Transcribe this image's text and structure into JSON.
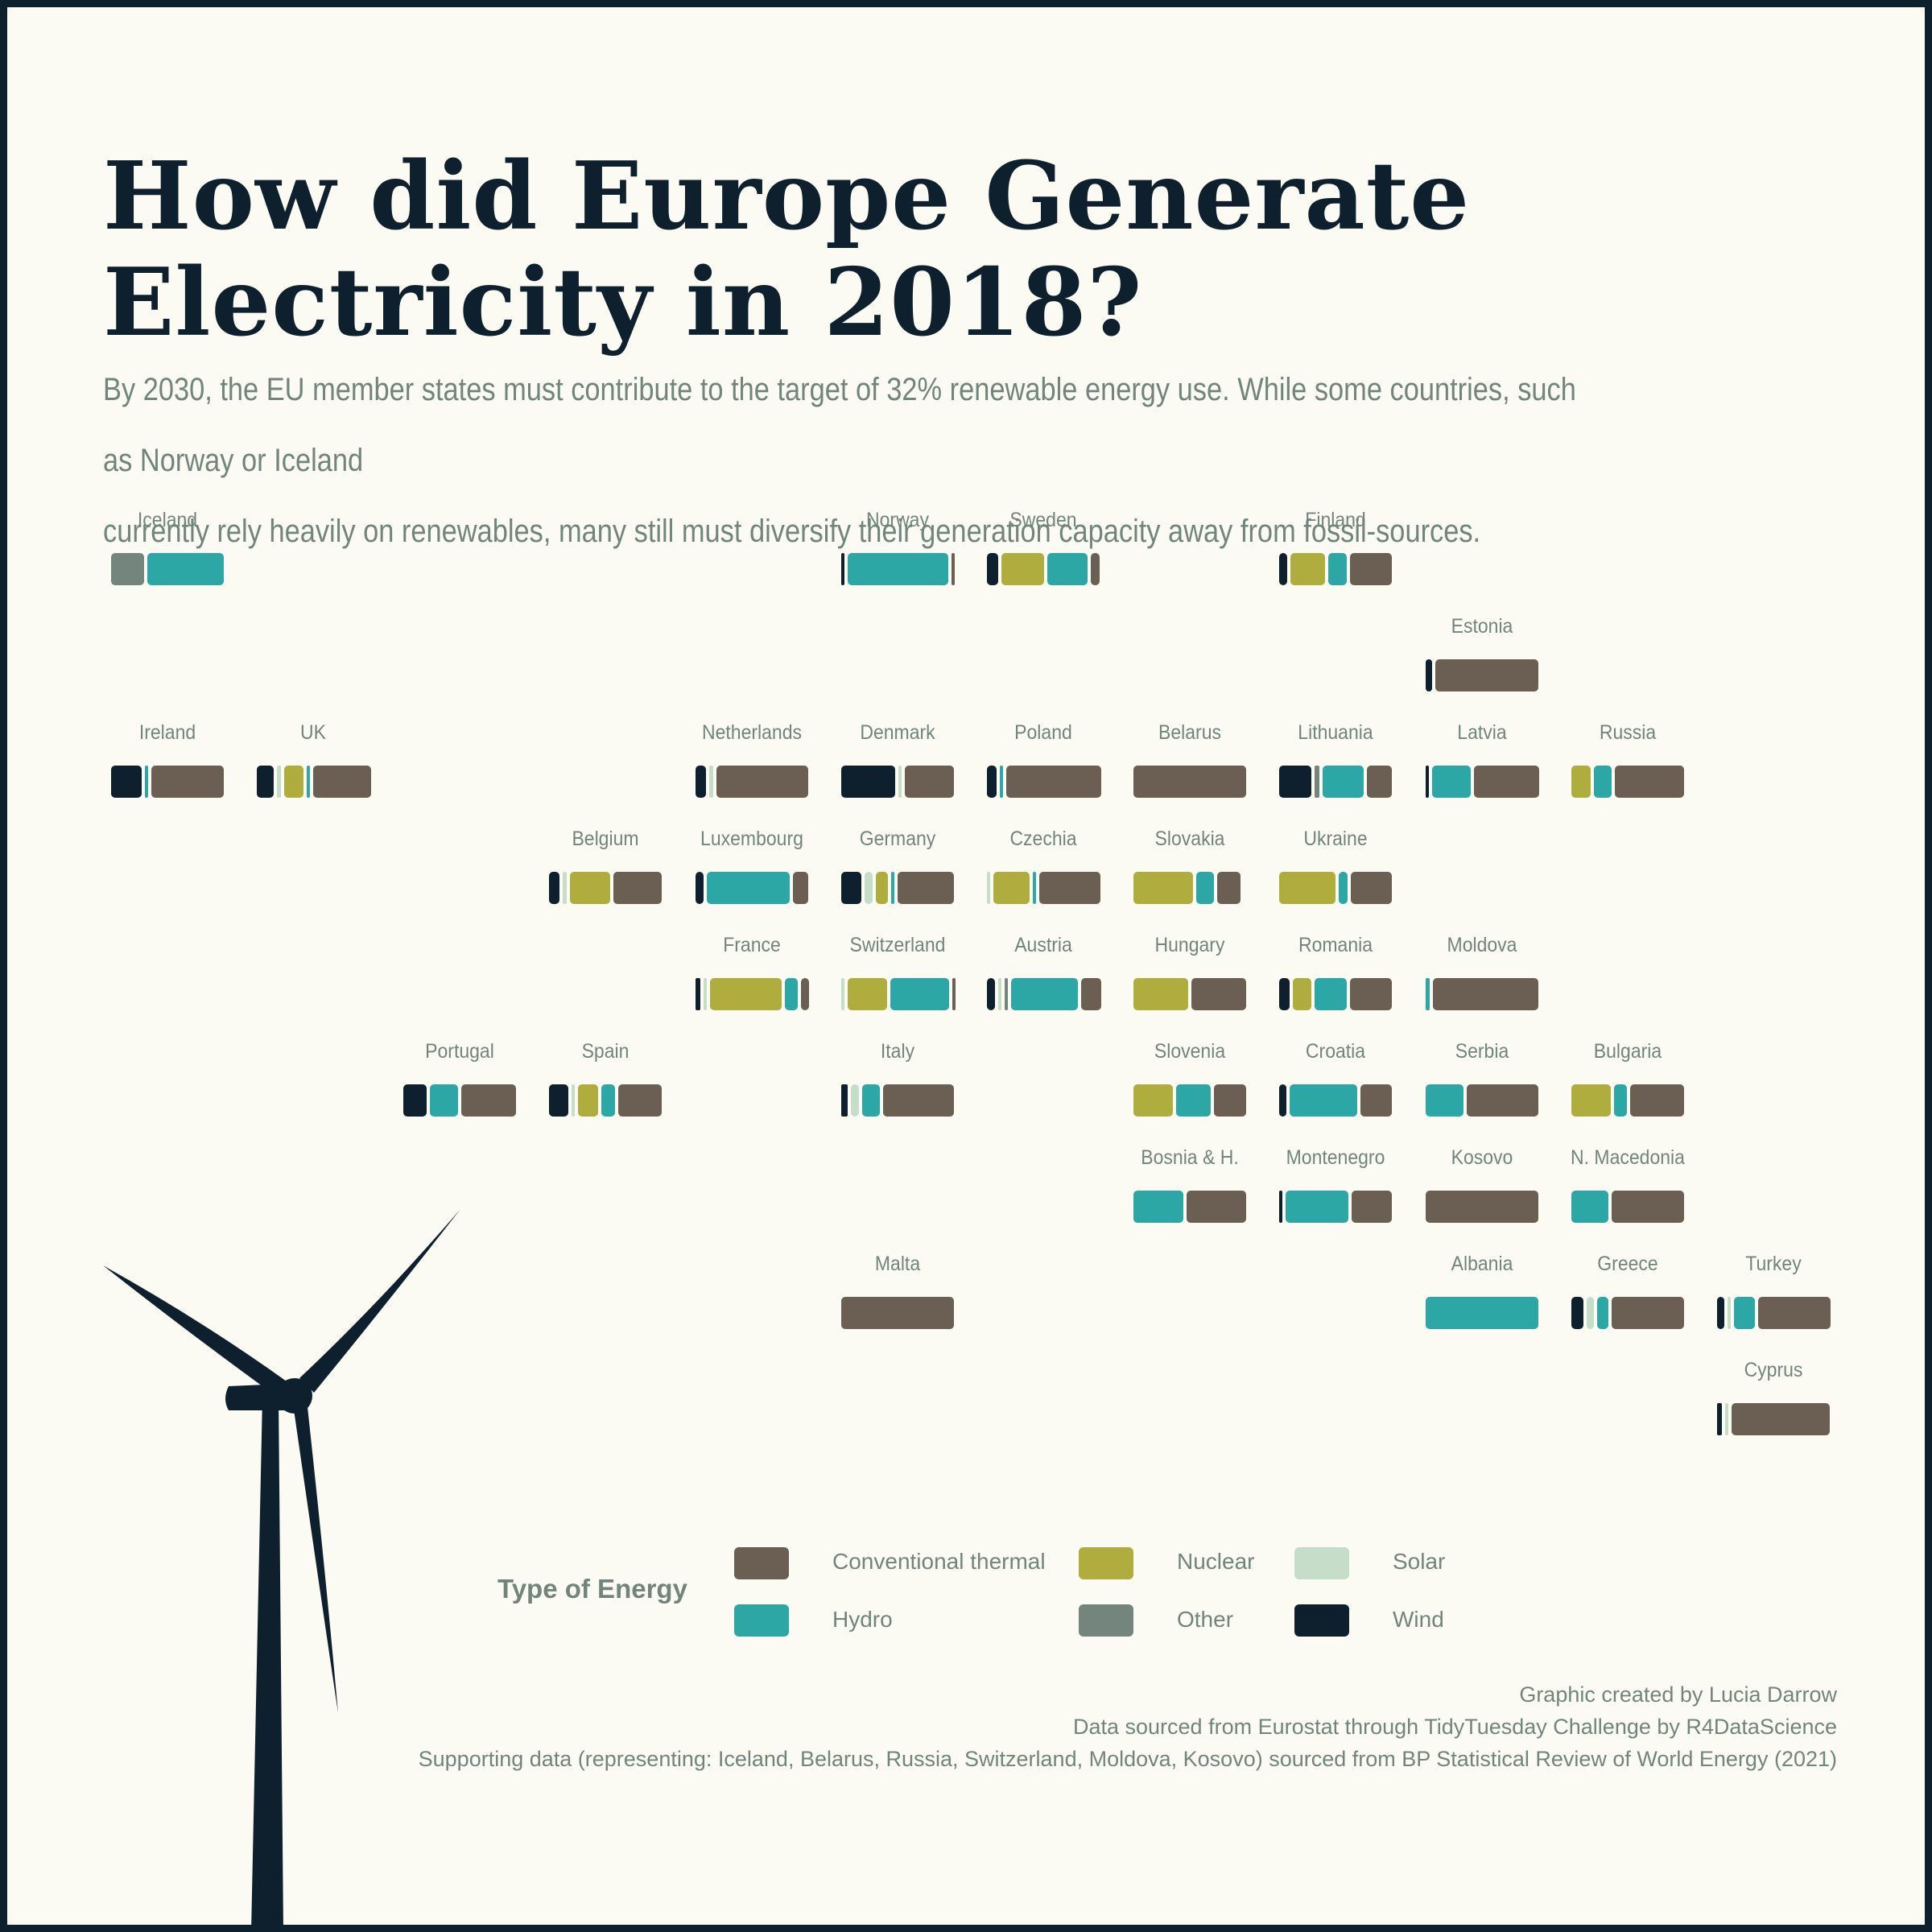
{
  "title": "How did Europe Generate\n Electricity in 2018?",
  "subtitle": "By 2030, the EU member states must contribute to the target of 32% renewable energy use. While some countries, such as Norway or Iceland\n currently rely heavily on renewables, many still must diversify their generation capacity away from fossil-sources.",
  "legend": {
    "title": "Type of Energy",
    "items": [
      {
        "label": "Conventional thermal",
        "color": "#6b5e52"
      },
      {
        "label": "Hydro",
        "color": "#2ca7a5"
      },
      {
        "label": "Nuclear",
        "color": "#afad3d"
      },
      {
        "label": "Other",
        "color": "#73857d"
      },
      {
        "label": "Solar",
        "color": "#c5ddc9"
      },
      {
        "label": "Wind",
        "color": "#0e1f2d"
      }
    ]
  },
  "credits": [
    "Graphic created by Lucia Darrow",
    "Data sourced from Eurostat through TidyTuesday Challenge by R4DataScience",
    "Supporting data (representing: Iceland, Belarus, Russia, Switzerland, Moldova, Kosovo) sourced from BP Statistical Review of World Energy (2021)"
  ],
  "chart_data": {
    "type": "bar",
    "description_note": "",
    "series": [
      "Wind",
      "Solar",
      "Other",
      "Nuclear",
      "Hydro",
      "Conventional thermal"
    ],
    "countries": [
      {
        "name": "Iceland",
        "row": 0,
        "col": 0,
        "shares": {
          "Other": 0.3,
          "Hydro": 0.7
        }
      },
      {
        "name": "Norway",
        "row": 0,
        "col": 5,
        "shares": {
          "Hydro": 0.95,
          "Conventional thermal": 0.02,
          "Wind": 0.03
        }
      },
      {
        "name": "Sweden",
        "row": 0,
        "col": 6,
        "shares": {
          "Wind": 0.11,
          "Nuclear": 0.41,
          "Hydro": 0.39,
          "Conventional thermal": 0.09
        }
      },
      {
        "name": "Finland",
        "row": 0,
        "col": 8,
        "shares": {
          "Wind": 0.08,
          "Nuclear": 0.33,
          "Hydro": 0.18,
          "Conventional thermal": 0.41
        }
      },
      {
        "name": "Estonia",
        "row": 1,
        "col": 9,
        "shares": {
          "Wind": 0.06,
          "Conventional thermal": 0.94
        }
      },
      {
        "name": "Ireland",
        "row": 2,
        "col": 0,
        "shares": {
          "Wind": 0.29,
          "Hydro": 0.03,
          "Conventional thermal": 0.68
        }
      },
      {
        "name": "UK",
        "row": 2,
        "col": 1,
        "shares": {
          "Wind": 0.17,
          "Solar": 0.04,
          "Nuclear": 0.19,
          "Hydro": 0.02,
          "Conventional thermal": 0.58
        }
      },
      {
        "name": "Netherlands",
        "row": 2,
        "col": 4,
        "shares": {
          "Wind": 0.1,
          "Solar": 0.04,
          "Conventional thermal": 0.86
        }
      },
      {
        "name": "Denmark",
        "row": 2,
        "col": 5,
        "shares": {
          "Wind": 0.51,
          "Solar": 0.03,
          "Conventional thermal": 0.46
        }
      },
      {
        "name": "Poland",
        "row": 2,
        "col": 6,
        "shares": {
          "Wind": 0.09,
          "Hydro": 0.02,
          "Conventional thermal": 0.89
        }
      },
      {
        "name": "Belarus",
        "row": 2,
        "col": 7,
        "shares": {
          "Conventional thermal": 1.0
        }
      },
      {
        "name": "Lithuania",
        "row": 2,
        "col": 8,
        "shares": {
          "Wind": 0.31,
          "Other": 0.05,
          "Hydro": 0.4,
          "Conventional thermal": 0.24
        }
      },
      {
        "name": "Latvia",
        "row": 2,
        "col": 9,
        "shares": {
          "Wind": 0.02,
          "Hydro": 0.37,
          "Conventional thermal": 0.61
        }
      },
      {
        "name": "Russia",
        "row": 2,
        "col": 10,
        "shares": {
          "Nuclear": 0.18,
          "Hydro": 0.17,
          "Conventional thermal": 0.65
        }
      },
      {
        "name": "Belgium",
        "row": 3,
        "col": 3,
        "shares": {
          "Wind": 0.1,
          "Solar": 0.04,
          "Nuclear": 0.39,
          "Conventional thermal": 0.47
        }
      },
      {
        "name": "Luxembourg",
        "row": 3,
        "col": 4,
        "shares": {
          "Wind": 0.08,
          "Hydro": 0.78,
          "Conventional thermal": 0.14
        }
      },
      {
        "name": "Germany",
        "row": 3,
        "col": 5,
        "shares": {
          "Wind": 0.2,
          "Solar": 0.08,
          "Nuclear": 0.12,
          "Hydro": 0.03,
          "Conventional thermal": 0.57
        }
      },
      {
        "name": "Czechia",
        "row": 3,
        "col": 6,
        "shares": {
          "Nuclear": 0.35,
          "Solar": 0.03,
          "Hydro": 0.03,
          "Conventional thermal": 0.59
        }
      },
      {
        "name": "Slovakia",
        "row": 3,
        "col": 7,
        "shares": {
          "Nuclear": 0.56,
          "Hydro": 0.17,
          "Conventional thermal": 0.22
        }
      },
      {
        "name": "Ukraine",
        "row": 3,
        "col": 8,
        "shares": {
          "Nuclear": 0.53,
          "Hydro": 0.08,
          "Conventional thermal": 0.39
        }
      },
      {
        "name": "France",
        "row": 4,
        "col": 4,
        "shares": {
          "Wind": 0.05,
          "Solar": 0.02,
          "Nuclear": 0.72,
          "Hydro": 0.13,
          "Conventional thermal": 0.08
        }
      },
      {
        "name": "Switzerland",
        "row": 4,
        "col": 5,
        "shares": {
          "Solar": 0.03,
          "Nuclear": 0.38,
          "Hydro": 0.57,
          "Conventional thermal": 0.02
        }
      },
      {
        "name": "Austria",
        "row": 4,
        "col": 6,
        "shares": {
          "Wind": 0.08,
          "Solar": 0.02,
          "Other": 0.03,
          "Hydro": 0.67,
          "Conventional thermal": 0.2
        }
      },
      {
        "name": "Hungary",
        "row": 4,
        "col": 7,
        "shares": {
          "Nuclear": 0.5,
          "Conventional thermal": 0.5
        }
      },
      {
        "name": "Romania",
        "row": 4,
        "col": 8,
        "shares": {
          "Wind": 0.1,
          "Nuclear": 0.18,
          "Hydro": 0.31,
          "Conventional thermal": 0.41
        }
      },
      {
        "name": "Moldova",
        "row": 4,
        "col": 9,
        "shares": {
          "Hydro": 0.04,
          "Conventional thermal": 0.96
        }
      },
      {
        "name": "Portugal",
        "row": 5,
        "col": 2,
        "shares": {
          "Wind": 0.22,
          "Hydro": 0.27,
          "Conventional thermal": 0.51
        }
      },
      {
        "name": "Spain",
        "row": 5,
        "col": 3,
        "shares": {
          "Wind": 0.19,
          "Solar": 0.03,
          "Nuclear": 0.2,
          "Hydro": 0.14,
          "Conventional thermal": 0.44
        }
      },
      {
        "name": "Italy",
        "row": 5,
        "col": 5,
        "shares": {
          "Wind": 0.06,
          "Solar": 0.08,
          "Hydro": 0.17,
          "Conventional thermal": 0.69
        }
      },
      {
        "name": "Slovenia",
        "row": 5,
        "col": 7,
        "shares": {
          "Nuclear": 0.37,
          "Hydro": 0.33,
          "Conventional thermal": 0.3
        }
      },
      {
        "name": "Croatia",
        "row": 5,
        "col": 8,
        "shares": {
          "Wind": 0.07,
          "Hydro": 0.63,
          "Conventional thermal": 0.3
        }
      },
      {
        "name": "Serbia",
        "row": 5,
        "col": 9,
        "shares": {
          "Hydro": 0.35,
          "Conventional thermal": 0.65
        }
      },
      {
        "name": "Bulgaria",
        "row": 5,
        "col": 10,
        "shares": {
          "Nuclear": 0.37,
          "Hydro": 0.12,
          "Conventional thermal": 0.51
        }
      },
      {
        "name": "Bosnia & H.",
        "row": 6,
        "col": 7,
        "shares": {
          "Hydro": 0.46,
          "Conventional thermal": 0.54
        }
      },
      {
        "name": "Montenegro",
        "row": 6,
        "col": 8,
        "shares": {
          "Wind": 0.03,
          "Hydro": 0.59,
          "Conventional thermal": 0.38
        }
      },
      {
        "name": "Kosovo",
        "row": 6,
        "col": 9,
        "shares": {
          "Conventional thermal": 1.0
        }
      },
      {
        "name": "N. Macedonia",
        "row": 6,
        "col": 10,
        "shares": {
          "Hydro": 0.34,
          "Conventional thermal": 0.66
        }
      },
      {
        "name": "Malta",
        "row": 7,
        "col": 5,
        "shares": {
          "Conventional thermal": 1.0
        }
      },
      {
        "name": "Albania",
        "row": 7,
        "col": 9,
        "shares": {
          "Hydro": 1.0
        }
      },
      {
        "name": "Greece",
        "row": 7,
        "col": 10,
        "shares": {
          "Wind": 0.12,
          "Solar": 0.07,
          "Hydro": 0.11,
          "Conventional thermal": 0.7
        }
      },
      {
        "name": "Turkey",
        "row": 7,
        "col": 11,
        "shares": {
          "Wind": 0.07,
          "Solar": 0.03,
          "Hydro": 0.2,
          "Conventional thermal": 0.7
        }
      },
      {
        "name": "Cyprus",
        "row": 8,
        "col": 11,
        "shares": {
          "Wind": 0.04,
          "Solar": 0.03,
          "Conventional thermal": 0.93
        }
      }
    ]
  }
}
